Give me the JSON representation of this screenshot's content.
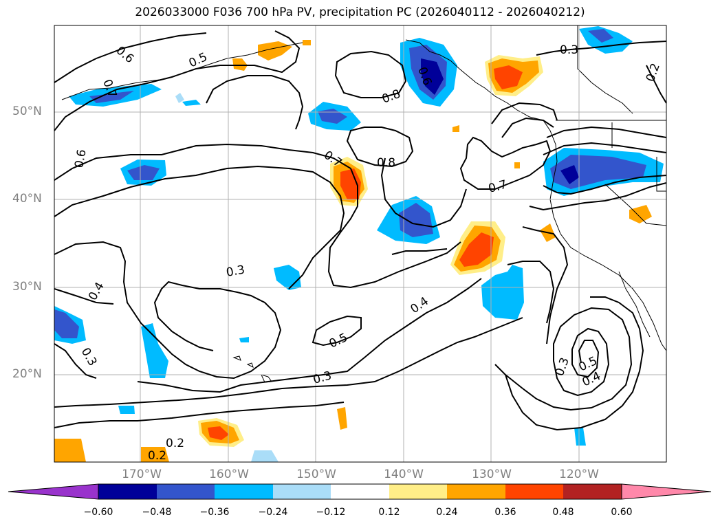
{
  "title": "2026033000 F036 700 hPa PV, precipitation PC (2026040112 - 2026040212)",
  "latitude_labels": [
    "50°N",
    "40°N",
    "30°N",
    "20°N"
  ],
  "longitude_labels": [
    "170°W",
    "160°W",
    "150°W",
    "140°W",
    "130°W",
    "120°W"
  ],
  "contour_labels": [
    "0.6",
    "0.5",
    "0.7",
    "0.6",
    "0.8",
    "0.6",
    "0.3",
    "0.7",
    "0.8",
    "0.7",
    "0.3",
    "0.4",
    "0.3",
    "0.4",
    "0.5",
    "0.3",
    "0.2",
    "0.2",
    "0.3",
    "0.5",
    "0.4",
    "0.2"
  ],
  "colorbar": {
    "labels": [
      "−0.60",
      "−0.48",
      "−0.36",
      "−0.24",
      "−0.12",
      "0.12",
      "0.24",
      "0.36",
      "0.48",
      "0.60"
    ],
    "colors": [
      "#9933cc",
      "#000099",
      "#3355cc",
      "#00bbff",
      "#aaddf8",
      "#ffffff",
      "#ffee88",
      "#ffa500",
      "#ff4400",
      "#b22222",
      "#ff88aa"
    ]
  }
}
